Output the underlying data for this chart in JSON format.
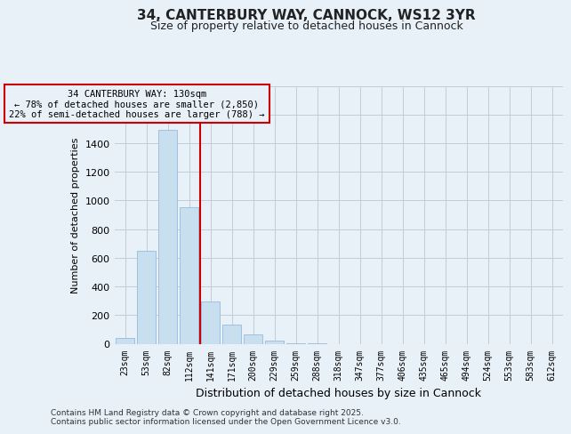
{
  "title": "34, CANTERBURY WAY, CANNOCK, WS12 3YR",
  "subtitle": "Size of property relative to detached houses in Cannock",
  "xlabel": "Distribution of detached houses by size in Cannock",
  "ylabel": "Number of detached properties",
  "annotation_line1": "34 CANTERBURY WAY: 130sqm",
  "annotation_line2": "← 78% of detached houses are smaller (2,850)",
  "annotation_line3": "22% of semi-detached houses are larger (788) →",
  "categories": [
    "23sqm",
    "53sqm",
    "82sqm",
    "112sqm",
    "141sqm",
    "171sqm",
    "200sqm",
    "229sqm",
    "259sqm",
    "288sqm",
    "318sqm",
    "347sqm",
    "377sqm",
    "406sqm",
    "435sqm",
    "465sqm",
    "494sqm",
    "524sqm",
    "553sqm",
    "583sqm",
    "612sqm"
  ],
  "values": [
    40,
    650,
    1490,
    950,
    295,
    135,
    65,
    20,
    5,
    1,
    0,
    0,
    0,
    0,
    0,
    0,
    0,
    0,
    0,
    0,
    0
  ],
  "bar_color": "#c8dff0",
  "bar_edge_color": "#a0c0e0",
  "vline_color": "#cc0000",
  "annotation_box_edgecolor": "#cc0000",
  "bg_color": "#e8f0f8",
  "plot_bg_color": "#e8f0f8",
  "ylim_max": 1800,
  "yticks": [
    0,
    200,
    400,
    600,
    800,
    1000,
    1200,
    1400,
    1600,
    1800
  ],
  "grid_color": "#c0ccd8",
  "footer_line1": "Contains HM Land Registry data © Crown copyright and database right 2025.",
  "footer_line2": "Contains public sector information licensed under the Open Government Licence v3.0.",
  "vline_pos": 3.5
}
